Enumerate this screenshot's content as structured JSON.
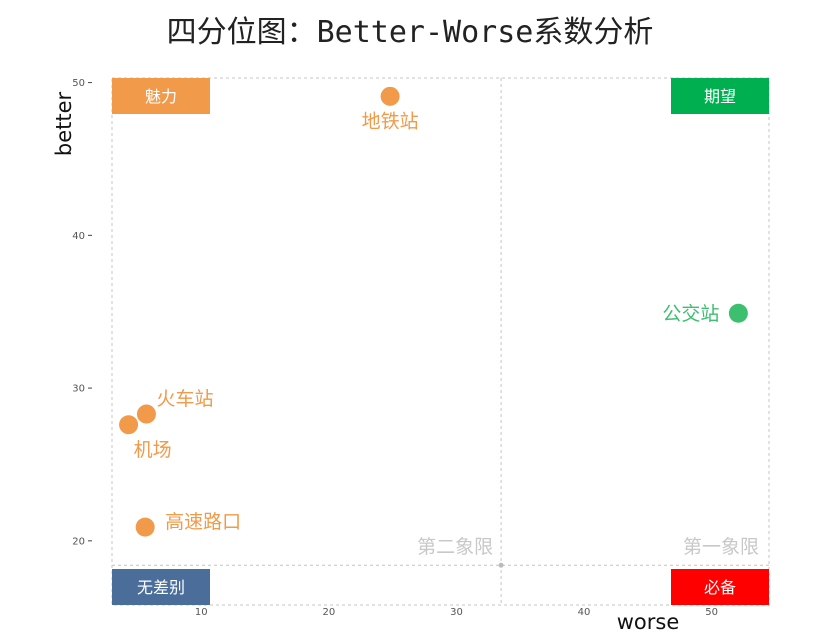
{
  "chart_data": {
    "type": "scatter",
    "title": "四分位图：Better-Worse系数分析",
    "xlabel": "worse",
    "ylabel": "better",
    "xlim": [
      3,
      54.5
    ],
    "ylim": [
      15.8,
      50.3
    ],
    "x_ticks": [
      10,
      20,
      30,
      40,
      50
    ],
    "y_ticks": [
      20,
      30,
      40,
      50
    ],
    "x_divider": 33.5,
    "y_divider": 18.4,
    "points": [
      {
        "label": "地铁站",
        "x": 24.8,
        "y": 49.1,
        "color": "#f09a4a",
        "label_pos": "below"
      },
      {
        "label": "公交站",
        "x": 52.1,
        "y": 34.9,
        "color": "#3cbf6e",
        "label_pos": "left"
      },
      {
        "label": "火车站",
        "x": 5.7,
        "y": 28.3,
        "color": "#f09a4a",
        "label_pos": "upper-right"
      },
      {
        "label": "机场",
        "x": 4.3,
        "y": 27.6,
        "color": "#f09a4a",
        "label_pos": "below"
      },
      {
        "label": "高速路口",
        "x": 5.6,
        "y": 20.9,
        "color": "#f09a4a",
        "label_pos": "right"
      }
    ],
    "quadrant_labels": [
      {
        "text": "第二象限",
        "anchor": "x_divider"
      },
      {
        "text": "第一象限",
        "anchor": "right"
      }
    ],
    "corner_labels": [
      {
        "text": "魅力",
        "corner": "top-left",
        "color": "#f09a4a"
      },
      {
        "text": "期望",
        "corner": "top-right",
        "color": "#00b050"
      },
      {
        "text": "无差别",
        "corner": "bottom-left",
        "color": "#4a6d9a"
      },
      {
        "text": "必备",
        "corner": "bottom-right",
        "color": "#ff0000"
      }
    ],
    "grid": false
  }
}
